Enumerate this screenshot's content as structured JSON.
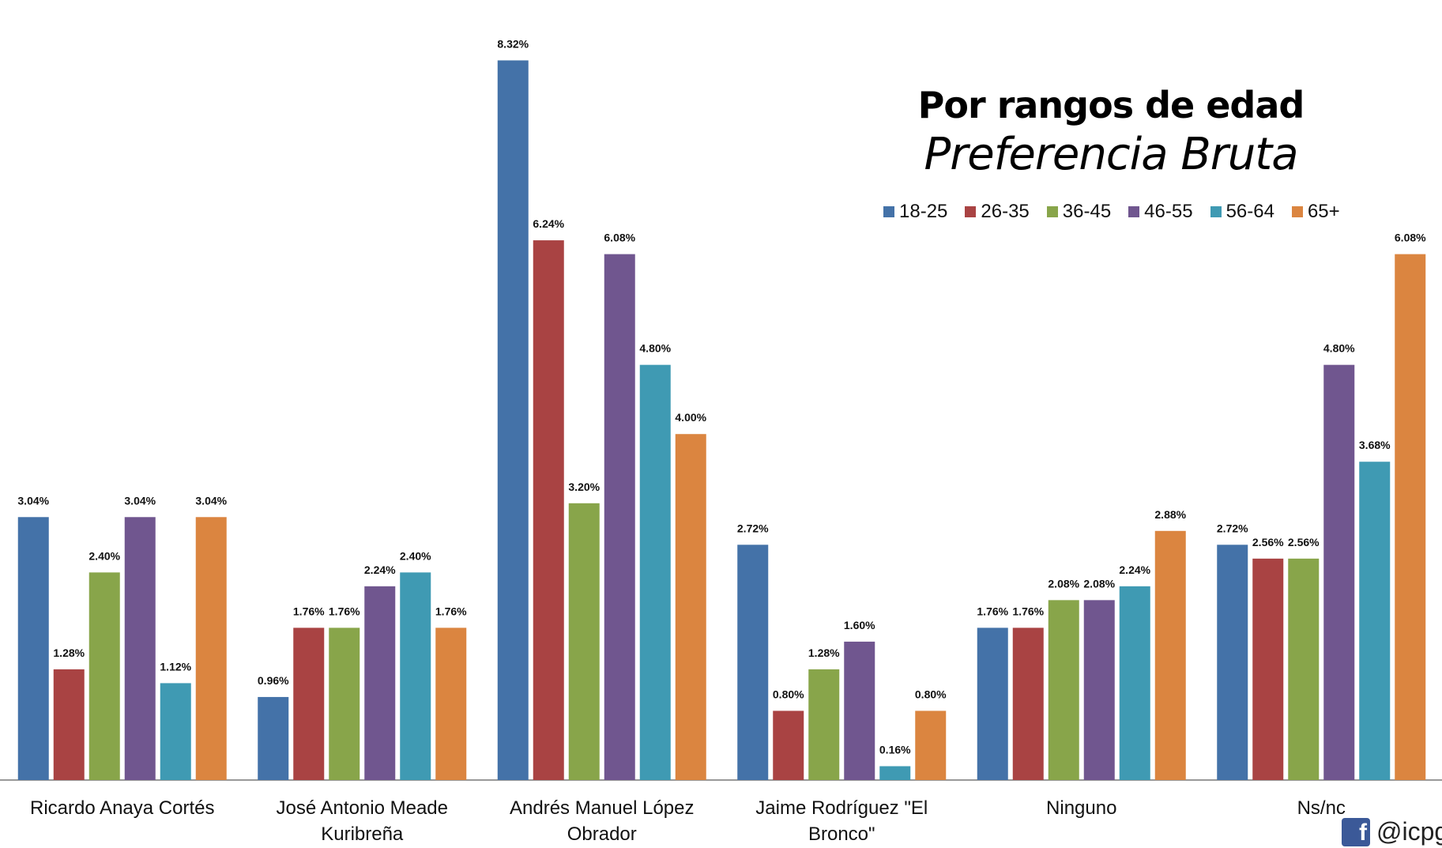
{
  "chart_data": {
    "type": "bar",
    "title": "Por rangos de edad",
    "subtitle": "Preferencia Bruta",
    "categories": [
      "Ricardo Anaya Cortés",
      "José Antonio Meade Kuribreña",
      "Andrés Manuel López Obrador",
      "Jaime Rodríguez \"El Bronco\"",
      "Ninguno",
      "Ns/nc"
    ],
    "series": [
      {
        "name": "18-25",
        "color": "#4472a8",
        "values": [
          3.04,
          0.96,
          8.32,
          2.72,
          1.76,
          2.72
        ],
        "value_labels": [
          "3.04%",
          "0.96%",
          "8.32%",
          "2.72%",
          "1.76%",
          "2.72%"
        ]
      },
      {
        "name": "26-35",
        "color": "#a94343",
        "values": [
          1.28,
          1.76,
          6.24,
          0.8,
          1.76,
          2.56
        ],
        "value_labels": [
          "1.28%",
          "1.76%",
          "6.24%",
          "0.80%",
          "1.76%",
          "2.56%"
        ]
      },
      {
        "name": "36-45",
        "color": "#88a54a",
        "values": [
          2.4,
          1.76,
          3.2,
          1.28,
          2.08,
          2.56
        ],
        "value_labels": [
          "2.40%",
          "1.76%",
          "3.20%",
          "1.28%",
          "2.08%",
          "2.56%"
        ]
      },
      {
        "name": "46-55",
        "color": "#70568f",
        "values": [
          3.04,
          2.24,
          6.08,
          1.6,
          2.08,
          4.8
        ],
        "value_labels": [
          "3.04%",
          "2.24%",
          "6.08%",
          "1.60%",
          "2.08%",
          "4.80%"
        ]
      },
      {
        "name": "56-64",
        "color": "#3f9ab3",
        "values": [
          1.12,
          2.4,
          4.8,
          0.16,
          2.24,
          3.68
        ],
        "value_labels": [
          "1.12%",
          "2.40%",
          "4.80%",
          "0.16%",
          "2.24%",
          "3.68%"
        ]
      },
      {
        "name": "65+",
        "color": "#db8540",
        "values": [
          3.04,
          1.76,
          4.0,
          0.8,
          2.88,
          6.08
        ],
        "value_labels": [
          "3.04%",
          "1.76%",
          "4.00%",
          "0.80%",
          "2.88%",
          "6.08%"
        ]
      }
    ],
    "ylim": [
      0,
      9
    ],
    "legend": "top-right",
    "footer": "@icpga"
  }
}
